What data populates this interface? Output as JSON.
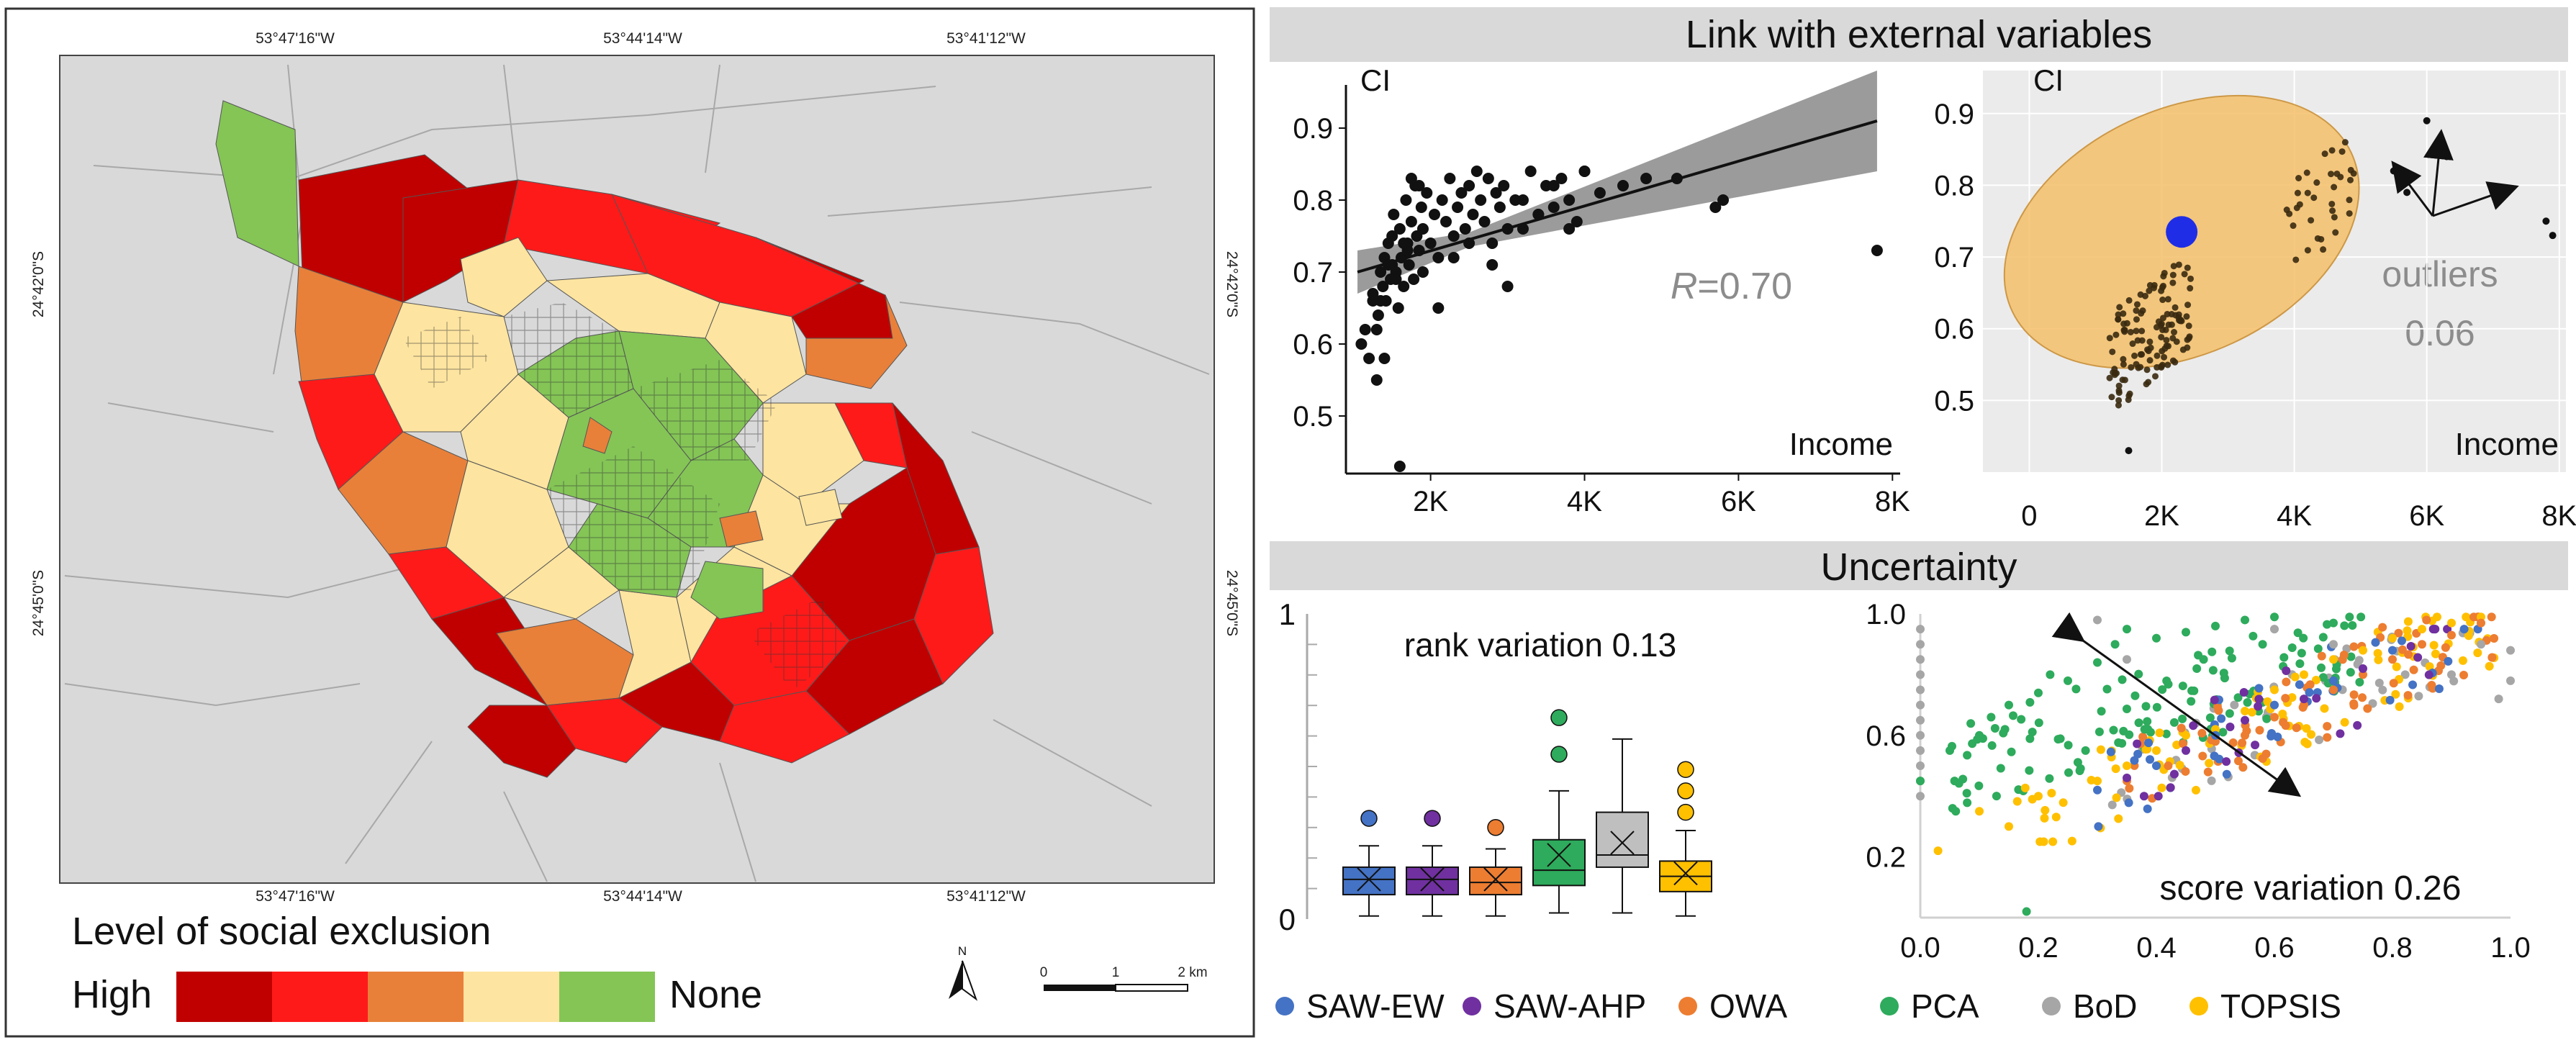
{
  "map": {
    "top_coords": [
      "53°47'16\"W",
      "53°44'14\"W",
      "53°41'12\"W"
    ],
    "bottom_coords": [
      "53°47'16\"W",
      "53°44'14\"W",
      "53°41'12\"W"
    ],
    "left_coords": [
      "24°42'0\"S",
      "24°45'0\"S"
    ],
    "right_coords": [
      "24°42'0\"S",
      "24°45'0\"S"
    ],
    "legend_title": "Level of social exclusion",
    "legend_high": "High",
    "legend_none": "None",
    "legend_colors": [
      "#c00000",
      "#ff1a1a",
      "#e8803a",
      "#fde4a0",
      "#84c556"
    ],
    "north_label": "N",
    "scale_labels": [
      "0",
      "1",
      "2 km"
    ]
  },
  "link_panel": {
    "header": "Link with external variables",
    "scatter": {
      "ylabel": "CI",
      "xlabel": "Income",
      "r_label_prefix": "R",
      "r_label_value": "=0.70",
      "yticks": [
        "0.9",
        "0.8",
        "0.7",
        "0.6",
        "0.5"
      ],
      "xticks": [
        "2K",
        "4K",
        "6K",
        "8K"
      ]
    },
    "outlier_plot": {
      "ylabel": "CI",
      "xlabel": "Income",
      "outliers_label": "outliers",
      "outliers_value": "0.06",
      "yticks": [
        "0.9",
        "0.8",
        "0.7",
        "0.6",
        "0.5"
      ],
      "xticks": [
        "0",
        "2K",
        "4K",
        "6K",
        "8K"
      ]
    }
  },
  "uncertainty_panel": {
    "header": "Uncertainty",
    "boxplot": {
      "title": "rank variation 0.13",
      "yticks": [
        "1",
        "0"
      ],
      "colors": [
        "#4472c4",
        "#7030a0",
        "#ed7d31",
        "#2eab5c",
        "#bfbfbf",
        "#ffc000"
      ]
    },
    "score_plot": {
      "title": "score variation 0.26",
      "yticks": [
        "1.0",
        "0.6",
        "0.2"
      ],
      "xticks": [
        "0.0",
        "0.2",
        "0.4",
        "0.6",
        "0.8",
        "1.0"
      ]
    }
  },
  "legend": [
    {
      "label": "SAW-EW",
      "color": "#4472c4"
    },
    {
      "label": "SAW-AHP",
      "color": "#7030a0"
    },
    {
      "label": "OWA",
      "color": "#ed7d31"
    },
    {
      "label": "PCA",
      "color": "#2eab5c"
    },
    {
      "label": "BoD",
      "color": "#a6a6a6"
    },
    {
      "label": "TOPSIS",
      "color": "#ffc000"
    }
  ],
  "chart_data": [
    {
      "type": "scatter",
      "title": "",
      "xlabel": "Income",
      "ylabel": "CI",
      "xlim": [
        900,
        8100
      ],
      "ylim": [
        0.42,
        0.96
      ],
      "annotation": "R=0.70",
      "regression": {
        "x": [
          1050,
          7800
        ],
        "y": [
          0.7,
          0.91
        ]
      },
      "x": [
        1100,
        1150,
        1200,
        1250,
        1300,
        1320,
        1350,
        1380,
        1400,
        1420,
        1450,
        1480,
        1500,
        1520,
        1550,
        1580,
        1600,
        1620,
        1650,
        1680,
        1700,
        1720,
        1750,
        1780,
        1800,
        1820,
        1850,
        1880,
        1900,
        1950,
        2000,
        2050,
        2100,
        2150,
        2200,
        2250,
        2300,
        2350,
        2400,
        2450,
        2500,
        2550,
        2600,
        2650,
        2700,
        2750,
        2800,
        2850,
        2900,
        2950,
        3000,
        3100,
        3200,
        3300,
        3400,
        3500,
        3600,
        3700,
        3800,
        3900,
        4000,
        4200,
        4500,
        4800,
        5200,
        5700,
        5800,
        7800,
        1600,
        1400,
        1300,
        1250,
        1500,
        1700,
        1900,
        2100,
        2300,
        2500,
        2800,
        3000,
        3200,
        3400,
        3600,
        3800,
        4000,
        1350,
        1450,
        1550,
        1650,
        1750,
        1850
      ],
      "y": [
        0.6,
        0.62,
        0.58,
        0.66,
        0.55,
        0.64,
        0.7,
        0.68,
        0.72,
        0.66,
        0.74,
        0.69,
        0.71,
        0.78,
        0.7,
        0.65,
        0.76,
        0.72,
        0.68,
        0.8,
        0.74,
        0.71,
        0.77,
        0.69,
        0.82,
        0.75,
        0.73,
        0.79,
        0.76,
        0.81,
        0.74,
        0.78,
        0.72,
        0.8,
        0.77,
        0.83,
        0.75,
        0.79,
        0.81,
        0.76,
        0.82,
        0.78,
        0.84,
        0.8,
        0.77,
        0.83,
        0.74,
        0.81,
        0.79,
        0.82,
        0.68,
        0.8,
        0.76,
        0.84,
        0.78,
        0.82,
        0.79,
        0.83,
        0.8,
        0.77,
        0.84,
        0.81,
        0.82,
        0.83,
        0.83,
        0.79,
        0.8,
        0.73,
        0.43,
        0.58,
        0.62,
        0.67,
        0.75,
        0.73,
        0.7,
        0.65,
        0.72,
        0.74,
        0.71,
        0.76,
        0.8,
        0.78,
        0.82,
        0.76,
        0.84,
        0.66,
        0.71,
        0.69,
        0.74,
        0.83,
        0.82
      ]
    },
    {
      "type": "scatter",
      "title": "",
      "xlabel": "Income",
      "ylabel": "CI",
      "xlim": [
        -700,
        8100
      ],
      "ylim": [
        0.4,
        0.96
      ],
      "annotation": "outliers 0.06",
      "centroid": {
        "x": 2300,
        "y": 0.735
      },
      "outliers": {
        "x": [
          5500,
          5600,
          5700,
          6000,
          6100,
          6300,
          7800,
          7900,
          1500
        ],
        "y": [
          0.82,
          0.8,
          0.79,
          0.89,
          0.85,
          0.84,
          0.75,
          0.73,
          0.43
        ]
      }
    },
    {
      "type": "box",
      "title": "rank variation 0.13",
      "ylim": [
        0,
        1
      ],
      "categories": [
        "SAW-EW",
        "SAW-AHP",
        "OWA",
        "PCA",
        "BoD",
        "TOPSIS"
      ],
      "boxes": [
        {
          "min": 0.01,
          "q1": 0.08,
          "median": 0.13,
          "q3": 0.17,
          "max": 0.24,
          "mean": 0.13,
          "outliers": [
            0.33
          ]
        },
        {
          "min": 0.01,
          "q1": 0.08,
          "median": 0.13,
          "q3": 0.17,
          "max": 0.24,
          "mean": 0.13,
          "outliers": [
            0.33
          ]
        },
        {
          "min": 0.01,
          "q1": 0.08,
          "median": 0.12,
          "q3": 0.17,
          "max": 0.23,
          "mean": 0.13,
          "outliers": [
            0.3
          ]
        },
        {
          "min": 0.02,
          "q1": 0.11,
          "median": 0.16,
          "q3": 0.26,
          "max": 0.42,
          "mean": 0.21,
          "outliers": [
            0.54,
            0.66
          ]
        },
        {
          "min": 0.02,
          "q1": 0.17,
          "median": 0.21,
          "q3": 0.35,
          "max": 0.59,
          "mean": 0.25,
          "outliers": []
        },
        {
          "min": 0.01,
          "q1": 0.09,
          "median": 0.14,
          "q3": 0.19,
          "max": 0.29,
          "mean": 0.15,
          "outliers": [
            0.35,
            0.42,
            0.49
          ]
        }
      ]
    },
    {
      "type": "scatter",
      "title": "score variation 0.26",
      "xlim": [
        0,
        1
      ],
      "ylim": [
        0,
        1
      ],
      "series": [
        {
          "name": "BoD",
          "x": [
            0,
            0,
            0,
            0,
            0,
            0,
            0,
            0,
            0,
            0,
            0,
            0,
            0.3,
            0.35,
            0.6,
            0.7,
            0.95,
            1.0,
            1.0,
            0.9,
            0.98
          ],
          "y": [
            0.95,
            0.9,
            0.85,
            0.8,
            0.75,
            0.7,
            0.65,
            0.6,
            0.55,
            0.5,
            0.45,
            0.4,
            0.98,
            0.85,
            0.95,
            0.9,
            0.9,
            0.88,
            0.78,
            0.8,
            0.72
          ]
        },
        {
          "name": "PCA",
          "x": [
            0.0,
            0.05,
            0.1,
            0.12,
            0.15,
            0.2,
            0.22,
            0.25,
            0.3,
            0.33,
            0.35,
            0.4,
            0.45,
            0.5,
            0.55,
            0.6,
            0.18,
            0.28,
            0.38,
            0.48,
            0.58,
            0.7
          ],
          "y": [
            0.45,
            0.55,
            0.6,
            0.66,
            0.7,
            0.74,
            0.8,
            0.78,
            0.84,
            0.9,
            0.95,
            0.92,
            0.94,
            0.96,
            0.98,
            0.99,
            0.02,
            0.55,
            0.62,
            0.85,
            0.9,
            0.97
          ]
        },
        {
          "name": "TOPSIS",
          "x": [
            0.1,
            0.2,
            0.3,
            0.35,
            0.4,
            0.45,
            0.5,
            0.55,
            0.6,
            0.65,
            0.7,
            0.75,
            0.8,
            0.85,
            0.9,
            0.95,
            0.03,
            0.15
          ],
          "y": [
            0.35,
            0.4,
            0.45,
            0.5,
            0.55,
            0.6,
            0.62,
            0.68,
            0.75,
            0.8,
            0.85,
            0.88,
            0.92,
            0.95,
            0.97,
            0.99,
            0.22,
            0.3
          ]
        },
        {
          "name": "OWA",
          "x": [
            0.35,
            0.42,
            0.5,
            0.55,
            0.6,
            0.65,
            0.7,
            0.75,
            0.8,
            0.85,
            0.9,
            0.95
          ],
          "y": [
            0.45,
            0.5,
            0.58,
            0.6,
            0.66,
            0.7,
            0.75,
            0.8,
            0.85,
            0.9,
            0.93,
            0.97
          ]
        },
        {
          "name": "SAW-EW",
          "x": [
            0.3,
            0.4,
            0.5,
            0.6,
            0.7,
            0.8
          ],
          "y": [
            0.42,
            0.5,
            0.6,
            0.7,
            0.78,
            0.88
          ]
        },
        {
          "name": "SAW-AHP",
          "x": [
            0.35,
            0.45,
            0.55,
            0.65,
            0.75
          ],
          "y": [
            0.46,
            0.55,
            0.65,
            0.72,
            0.82
          ]
        }
      ]
    }
  ]
}
